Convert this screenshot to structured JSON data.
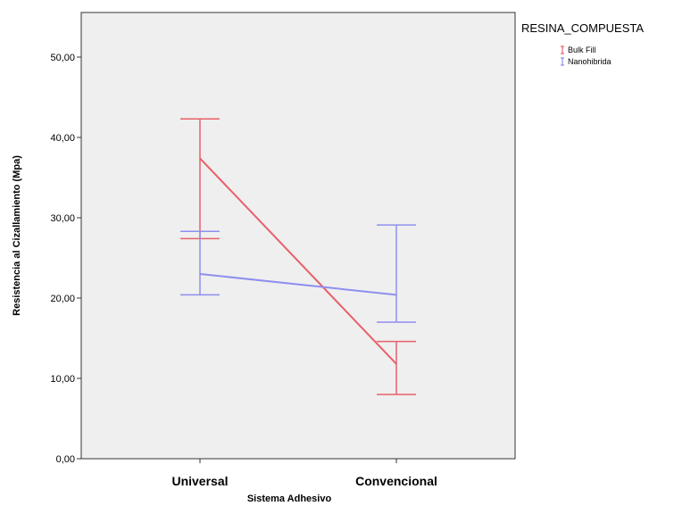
{
  "chart_data": {
    "type": "line",
    "title": "",
    "xlabel": "Sistema Adhesivo",
    "ylabel": "Resistencia al Cizallamiento (Mpa)",
    "categories": [
      "Universal",
      "Convencional"
    ],
    "ylim": [
      0,
      55
    ],
    "yticks": [
      0,
      10,
      20,
      30,
      40,
      50
    ],
    "ytick_labels": [
      "0,00",
      "10,00",
      "20,00",
      "30,00",
      "40,00",
      "50,00"
    ],
    "grid": false,
    "legend": {
      "title": "RESINA_COMPUESTA",
      "position": "right"
    },
    "series": [
      {
        "name": "Bulk Fill",
        "color": "#e8606a",
        "values": [
          37.4,
          11.8
        ],
        "ci_low": [
          27.4,
          8.0
        ],
        "ci_high": [
          42.3,
          14.6
        ]
      },
      {
        "name": "Nanohibrida",
        "color": "#8f8fef",
        "values": [
          23.0,
          20.4
        ],
        "ci_low": [
          20.4,
          17.0
        ],
        "ci_high": [
          28.3,
          29.1
        ]
      }
    ]
  }
}
